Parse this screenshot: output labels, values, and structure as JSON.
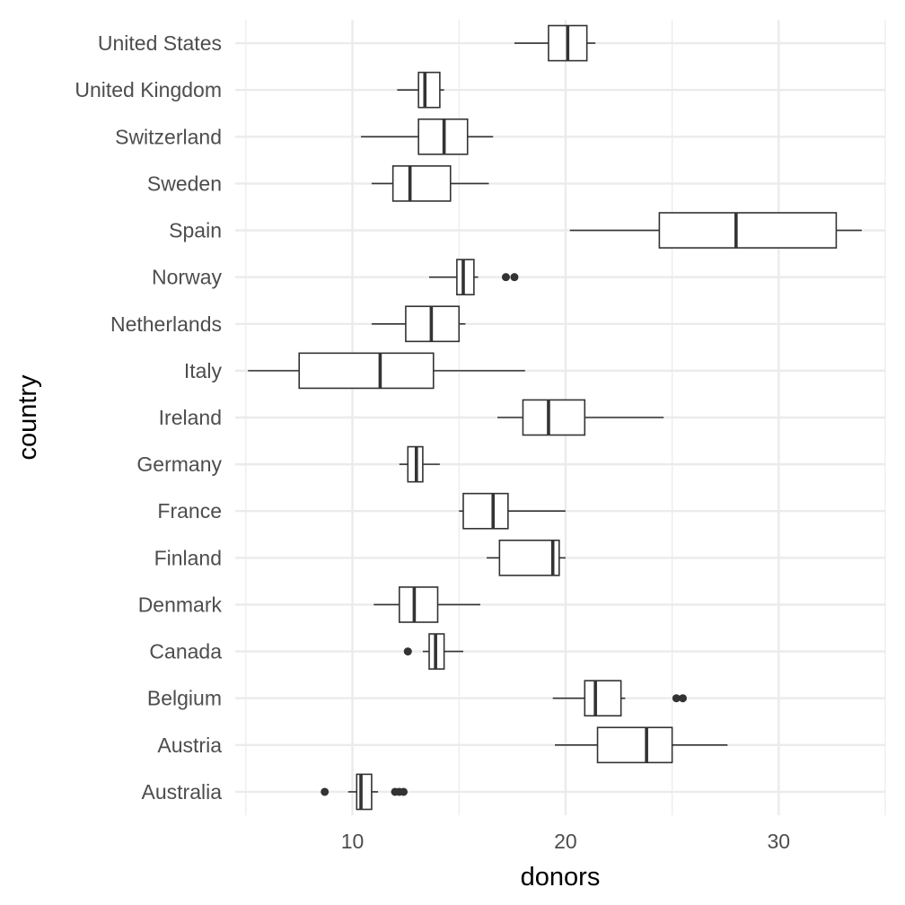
{
  "chart_data": {
    "type": "boxplot",
    "orientation": "horizontal",
    "xlabel": "donors",
    "ylabel": "country",
    "xlim": [
      4.5,
      35
    ],
    "x_ticks": [
      10,
      20,
      30
    ],
    "grid": true,
    "colors": {
      "grid": "#ebebeb",
      "box_stroke": "#333333",
      "outlier": "#333333",
      "background": "#ffffff"
    },
    "categories": [
      {
        "name": "Australia",
        "whisker_low": 9.8,
        "q1": 10.2,
        "median": 10.4,
        "q3": 10.9,
        "whisker_high": 11.2,
        "outliers": [
          8.7,
          12.0,
          12.2,
          12.4
        ]
      },
      {
        "name": "Austria",
        "whisker_low": 19.5,
        "q1": 21.5,
        "median": 23.8,
        "q3": 25.0,
        "whisker_high": 27.6,
        "outliers": []
      },
      {
        "name": "Belgium",
        "whisker_low": 19.4,
        "q1": 20.9,
        "median": 21.4,
        "q3": 22.6,
        "whisker_high": 22.8,
        "outliers": [
          25.2,
          25.5
        ]
      },
      {
        "name": "Canada",
        "whisker_low": 13.3,
        "q1": 13.6,
        "median": 13.9,
        "q3": 14.3,
        "whisker_high": 15.2,
        "outliers": [
          12.6
        ]
      },
      {
        "name": "Denmark",
        "whisker_low": 11.0,
        "q1": 12.2,
        "median": 12.9,
        "q3": 14.0,
        "whisker_high": 16.0,
        "outliers": []
      },
      {
        "name": "Finland",
        "whisker_low": 16.3,
        "q1": 16.9,
        "median": 19.4,
        "q3": 19.7,
        "whisker_high": 20.0,
        "outliers": []
      },
      {
        "name": "France",
        "whisker_low": 15.0,
        "q1": 15.2,
        "median": 16.6,
        "q3": 17.3,
        "whisker_high": 20.0,
        "outliers": []
      },
      {
        "name": "Germany",
        "whisker_low": 12.2,
        "q1": 12.6,
        "median": 13.0,
        "q3": 13.3,
        "whisker_high": 14.1,
        "outliers": []
      },
      {
        "name": "Ireland",
        "whisker_low": 16.8,
        "q1": 18.0,
        "median": 19.2,
        "q3": 20.9,
        "whisker_high": 24.6,
        "outliers": []
      },
      {
        "name": "Italy",
        "whisker_low": 5.1,
        "q1": 7.5,
        "median": 11.3,
        "q3": 13.8,
        "whisker_high": 18.1,
        "outliers": []
      },
      {
        "name": "Netherlands",
        "whisker_low": 10.9,
        "q1": 12.5,
        "median": 13.7,
        "q3": 15.0,
        "whisker_high": 15.3,
        "outliers": []
      },
      {
        "name": "Norway",
        "whisker_low": 13.6,
        "q1": 14.9,
        "median": 15.2,
        "q3": 15.7,
        "whisker_high": 15.9,
        "outliers": [
          17.2,
          17.6
        ]
      },
      {
        "name": "Spain",
        "whisker_low": 20.2,
        "q1": 24.4,
        "median": 28.0,
        "q3": 32.7,
        "whisker_high": 33.9,
        "outliers": []
      },
      {
        "name": "Sweden",
        "whisker_low": 10.9,
        "q1": 11.9,
        "median": 12.7,
        "q3": 14.6,
        "whisker_high": 16.4,
        "outliers": []
      },
      {
        "name": "Switzerland",
        "whisker_low": 10.4,
        "q1": 13.1,
        "median": 14.3,
        "q3": 15.4,
        "whisker_high": 16.6,
        "outliers": []
      },
      {
        "name": "United Kingdom",
        "whisker_low": 12.1,
        "q1": 13.1,
        "median": 13.4,
        "q3": 14.1,
        "whisker_high": 14.3,
        "outliers": []
      },
      {
        "name": "United States",
        "whisker_low": 17.6,
        "q1": 19.2,
        "median": 20.1,
        "q3": 21.0,
        "whisker_high": 21.4,
        "outliers": []
      }
    ]
  }
}
